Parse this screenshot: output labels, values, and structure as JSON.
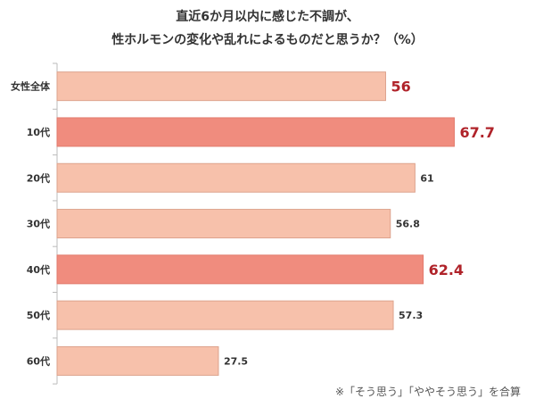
{
  "chart_data": {
    "type": "bar",
    "orientation": "horizontal",
    "title_lines": [
      "直近6か月以内に感じた不調が、",
      "性ホルモンの変化や乱れによるものだと思うか？（%）"
    ],
    "categories": [
      "女性全体",
      "10代",
      "20代",
      "30代",
      "40代",
      "50代",
      "60代"
    ],
    "values": [
      56,
      67.7,
      61,
      56.8,
      62.4,
      57.3,
      27.5
    ],
    "highlighted": [
      true,
      true,
      false,
      false,
      true,
      false,
      false
    ],
    "xlim": [
      0,
      80
    ],
    "note": "※「そう思う」「ややそう思う」を合算",
    "colors": {
      "normal": "#f7c1ab",
      "normal_border": "#dda38d",
      "strong": "#f08c7e",
      "label_highlight": "#b0232a",
      "label": "#333333"
    }
  }
}
